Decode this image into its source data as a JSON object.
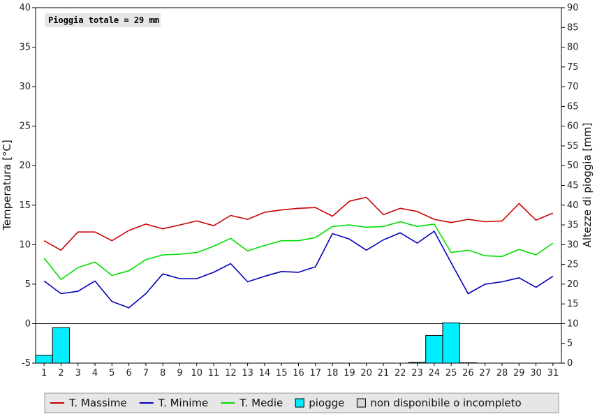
{
  "chart_data": {
    "type": "line",
    "annotation": "Pioggia totale = 29 mm",
    "ylabel_left": "Temperatura [°C]",
    "ylabel_right": "Altezze di pioggia [mm]",
    "ylim_left": [
      -5,
      40
    ],
    "ylim_right": [
      0,
      90
    ],
    "yticks_left": [
      -5,
      0,
      5,
      10,
      15,
      20,
      25,
      30,
      35,
      40
    ],
    "yticks_right": [
      0,
      5,
      10,
      15,
      20,
      25,
      30,
      35,
      40,
      45,
      50,
      55,
      60,
      65,
      70,
      75,
      80,
      85,
      90
    ],
    "x": [
      1,
      2,
      3,
      4,
      5,
      6,
      7,
      8,
      9,
      10,
      11,
      12,
      13,
      14,
      15,
      16,
      17,
      18,
      19,
      20,
      21,
      22,
      23,
      24,
      25,
      26,
      27,
      28,
      29,
      30,
      31
    ],
    "grid": false,
    "legend_position": "bottom",
    "series": [
      {
        "name": "T. Massime",
        "color": "#cc0000",
        "values": [
          10.5,
          9.3,
          11.6,
          11.6,
          10.5,
          11.8,
          12.6,
          12.0,
          12.5,
          13.0,
          12.4,
          13.7,
          13.2,
          14.1,
          14.4,
          14.6,
          14.7,
          13.6,
          15.5,
          16.0,
          13.8,
          14.6,
          14.2,
          13.2,
          12.8,
          13.2,
          12.9,
          13.0,
          15.2,
          13.1,
          14.0
        ]
      },
      {
        "name": "T. Minime",
        "color": "#0000bb",
        "values": [
          5.4,
          3.8,
          4.1,
          5.4,
          2.8,
          2.0,
          3.8,
          6.3,
          5.7,
          5.7,
          6.5,
          7.6,
          5.3,
          6.0,
          6.6,
          6.5,
          7.2,
          11.4,
          10.7,
          9.3,
          10.6,
          11.5,
          10.2,
          11.7,
          7.7,
          3.8,
          5.0,
          5.3,
          5.8,
          4.6,
          6.0
        ]
      },
      {
        "name": "T. Medie",
        "color": "#00dd00",
        "values": [
          8.3,
          5.6,
          7.1,
          7.8,
          6.1,
          6.7,
          8.1,
          8.7,
          8.8,
          9.0,
          9.8,
          10.8,
          9.2,
          9.9,
          10.5,
          10.5,
          10.9,
          12.3,
          12.5,
          12.2,
          12.3,
          12.9,
          12.3,
          12.6,
          9.0,
          9.3,
          8.6,
          8.5,
          9.4,
          8.7,
          10.2
        ]
      }
    ],
    "rain": {
      "name": "piogge",
      "color": "#00eeff",
      "values": [
        2.0,
        9.0,
        0,
        0,
        0,
        0,
        0,
        0,
        0,
        0,
        0,
        0,
        0,
        0,
        0,
        0,
        0,
        0,
        0,
        0,
        0,
        0,
        0.2,
        7.0,
        10.2,
        0.1,
        0,
        0,
        0,
        0,
        0
      ]
    },
    "legend": [
      {
        "label": "T. Massime",
        "kind": "line",
        "color": "#cc0000"
      },
      {
        "label": "T. Minime",
        "kind": "line",
        "color": "#0000bb"
      },
      {
        "label": "T. Medie",
        "kind": "line",
        "color": "#00dd00"
      },
      {
        "label": "piogge",
        "kind": "box",
        "color": "#00eeff"
      },
      {
        "label": "non disponibile o incompleto",
        "kind": "box",
        "color": "#d8d8d8"
      }
    ]
  }
}
